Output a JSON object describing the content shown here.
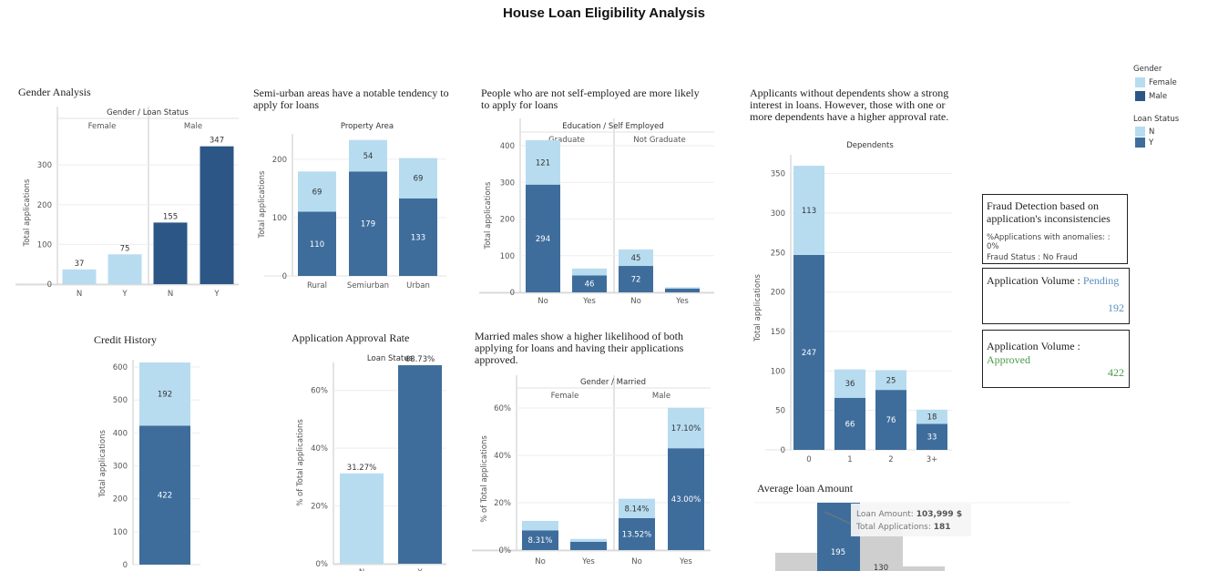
{
  "page": {
    "title": "House Loan Eligibility Analysis"
  },
  "colors": {
    "light": "#b7dcf0",
    "mid": "#3e6d9c",
    "dark": "#2b5686",
    "axis": "#c8c8c8",
    "grid": "#eeeeee",
    "pending": "#5b8fbf",
    "approved": "#4a9a4a"
  },
  "legend": {
    "gender_title": "Gender",
    "gender_items": [
      {
        "label": "Female",
        "color": "#b7dcf0"
      },
      {
        "label": "Male",
        "color": "#2b5686"
      }
    ],
    "status_title": "Loan Status",
    "status_items": [
      {
        "label": "N",
        "color": "#b7dcf0"
      },
      {
        "label": "Y",
        "color": "#3e6d9c"
      }
    ]
  },
  "panels": {
    "fraud": {
      "title": "Fraud Detection based on application's inconsistencies",
      "anomalies": "%Applications with anomalies: : 0%",
      "status": "Fraud Status : No Fraud"
    },
    "pending": {
      "label": "Application Volume : ",
      "word": "Pending",
      "value": "192"
    },
    "approved": {
      "label": "Application Volume : ",
      "word": "Approved",
      "value": "422"
    }
  },
  "chart_data": [
    {
      "id": "gender",
      "type": "bar",
      "title": "Gender Analysis",
      "header": "Gender / Loan Status",
      "groups": [
        "Female",
        "Male"
      ],
      "categories": [
        "N",
        "Y",
        "N",
        "Y"
      ],
      "values": [
        37,
        75,
        155,
        347
      ],
      "labels": [
        "37",
        "75",
        "155",
        "347"
      ],
      "ylabel": "Total applications",
      "yticks": [
        "0",
        "100",
        "200",
        "300"
      ],
      "ylim": [
        0,
        360
      ]
    },
    {
      "id": "property",
      "type": "bar",
      "title": "Semi-urban areas have a notable tendency to apply for loans",
      "header": "Property Area",
      "categories": [
        "Rural",
        "Semiurban",
        "Urban"
      ],
      "series": [
        {
          "values": [
            110,
            179,
            133
          ],
          "labels": [
            "110",
            "179",
            "133"
          ]
        },
        {
          "values": [
            69,
            54,
            69
          ],
          "labels": [
            "69",
            "54",
            "69"
          ]
        }
      ],
      "ylabel": "Total applications",
      "yticks": [
        "0",
        "100",
        "200"
      ],
      "ylim": [
        0,
        245
      ]
    },
    {
      "id": "education",
      "type": "bar",
      "title": "People who are not self-employed are more likely to apply for loans",
      "header": "Education / Self Employed",
      "groups": [
        "Graduate",
        "Not Graduate"
      ],
      "categories": [
        "No",
        "Yes",
        "No",
        "Yes"
      ],
      "series": [
        {
          "values": [
            294,
            46,
            72,
            10
          ],
          "labels": [
            "294",
            "46",
            "72",
            ""
          ]
        },
        {
          "values": [
            121,
            19,
            45,
            4
          ],
          "labels": [
            "121",
            "",
            "45",
            ""
          ]
        }
      ],
      "ylabel": "Total applications",
      "yticks": [
        "0",
        "100",
        "200",
        "300",
        "400"
      ],
      "ylim": [
        0,
        420
      ]
    },
    {
      "id": "dependents",
      "type": "bar",
      "title": "Applicants without dependents show a strong interest in loans. However, those with one or more dependents have a higher approval rate.",
      "header": "Dependents",
      "categories": [
        "0",
        "1",
        "2",
        "3+"
      ],
      "series": [
        {
          "values": [
            247,
            66,
            76,
            33
          ],
          "labels": [
            "247",
            "66",
            "76",
            "33"
          ]
        },
        {
          "values": [
            113,
            36,
            25,
            18
          ],
          "labels": [
            "113",
            "36",
            "25",
            "18"
          ]
        }
      ],
      "ylabel": "Total applications",
      "yticks": [
        "0",
        "50",
        "100",
        "150",
        "200",
        "250",
        "300",
        "350"
      ],
      "ylim": [
        0,
        360
      ]
    },
    {
      "id": "credit",
      "type": "bar",
      "title": "Credit History",
      "categories": [
        ""
      ],
      "series": [
        {
          "values": [
            422
          ],
          "labels": [
            "422"
          ]
        },
        {
          "values": [
            192
          ],
          "labels": [
            "192"
          ]
        }
      ],
      "ylabel": "Total applications",
      "yticks": [
        "0",
        "100",
        "200",
        "300",
        "400",
        "500",
        "600"
      ],
      "ylim": [
        0,
        614
      ]
    },
    {
      "id": "approval",
      "type": "bar",
      "title": "Application Approval Rate",
      "header": "Loan Status",
      "categories": [
        "N",
        "Y"
      ],
      "values": [
        31.27,
        68.73
      ],
      "labels": [
        "31.27%",
        "68.73%"
      ],
      "ylabel": "% of Total applications",
      "yticks": [
        "0%",
        "20%",
        "40%",
        "60%"
      ],
      "ylim": [
        0,
        70
      ]
    },
    {
      "id": "married",
      "type": "bar",
      "title": "Married males show a higher likelihood of both applying for loans and having their applications approved.",
      "header": "Gender / Married",
      "groups": [
        "Female",
        "Male"
      ],
      "categories": [
        "No",
        "Yes",
        "No",
        "Yes"
      ],
      "series": [
        {
          "values": [
            8.31,
            3.5,
            13.52,
            43.0
          ],
          "labels": [
            "8.31%",
            "",
            "13.52%",
            "43.00%"
          ]
        },
        {
          "values": [
            4.0,
            1.2,
            8.14,
            17.1
          ],
          "labels": [
            "",
            "",
            "8.14%",
            "17.10%"
          ]
        }
      ],
      "ylabel": "% of Total applications",
      "yticks": [
        "0%",
        "20%",
        "40%",
        "60%"
      ],
      "ylim": [
        0,
        60
      ]
    },
    {
      "id": "loan_amount",
      "type": "bar",
      "title": "Average loan Amount",
      "label_bar": "195",
      "label_other": "130",
      "tooltip": {
        "amount_label": "Loan Amount: ",
        "amount": "103,999 $",
        "count_label": "Total Applications: ",
        "count": "181"
      }
    }
  ]
}
